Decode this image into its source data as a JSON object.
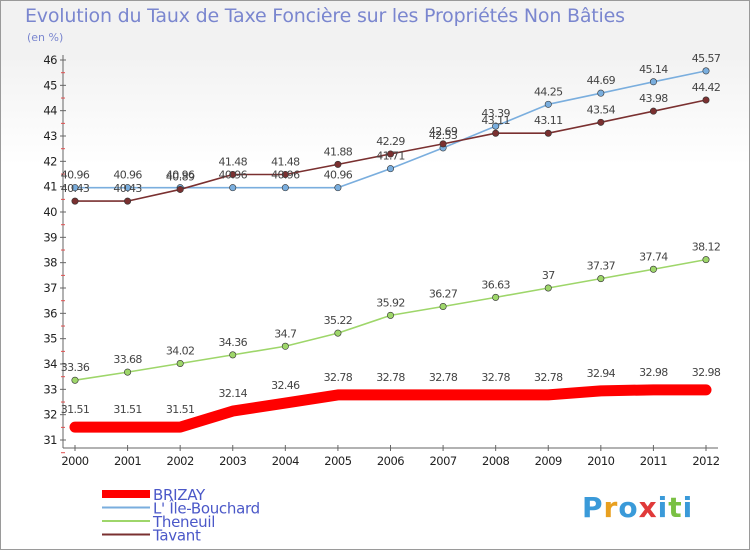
{
  "header": {
    "title": "Evolution du Taux de Taxe Foncière sur les Propriétés Non Bâties",
    "subtitle": "(en %)"
  },
  "brand": {
    "logo_text": "Proxiti"
  },
  "chart_data": {
    "type": "line",
    "title": "Evolution du Taux de Taxe Foncière sur les Propriétés Non Bâties",
    "ylabel": "(en %)",
    "xlabel": "",
    "ylim": [
      31,
      46
    ],
    "yticks": [
      31,
      32,
      33,
      34,
      35,
      36,
      37,
      38,
      39,
      40,
      41,
      42,
      43,
      44,
      45,
      46
    ],
    "x": [
      "2000",
      "2001",
      "2002",
      "2003",
      "2004",
      "2005",
      "2006",
      "2007",
      "2008",
      "2009",
      "2010",
      "2011",
      "2012"
    ],
    "grid": false,
    "legend_position": "bottom-left",
    "series": [
      {
        "name": "BRIZAY",
        "color": "#ff0000",
        "values": [
          31.51,
          31.51,
          31.51,
          32.14,
          32.46,
          32.78,
          32.78,
          32.78,
          32.78,
          32.78,
          32.94,
          32.98,
          32.98
        ],
        "labels": [
          "31.51",
          "31.51",
          "31.51",
          "32.14",
          "32.46",
          "32.78",
          "32.78",
          "32.78",
          "32.78",
          "32.78",
          "32.94",
          "32.98",
          "32.98"
        ]
      },
      {
        "name": "L' Île-Bouchard",
        "color": "#7aaede",
        "values": [
          40.96,
          40.96,
          40.96,
          40.96,
          40.96,
          40.96,
          41.71,
          42.53,
          43.39,
          44.25,
          44.69,
          45.14,
          45.57
        ],
        "labels": [
          "40.96",
          "40.96",
          "40.96",
          "40.96",
          "40.96",
          "40.96",
          "41.71",
          "42.53",
          "43.39",
          "44.25",
          "44.69",
          "45.14",
          "45.57"
        ]
      },
      {
        "name": "Theneuil",
        "color": "#9ed66a",
        "values": [
          33.36,
          33.68,
          34.02,
          34.36,
          34.7,
          35.22,
          35.92,
          36.27,
          36.63,
          37,
          37.37,
          37.74,
          38.12
        ],
        "labels": [
          "33.36",
          "33.68",
          "34.02",
          "34.36",
          "34.7",
          "35.22",
          "35.92",
          "36.27",
          "36.63",
          "37",
          "37.37",
          "37.74",
          "38.12"
        ]
      },
      {
        "name": "Tavant",
        "color": "#7a3030",
        "values": [
          40.43,
          40.43,
          40.89,
          41.48,
          41.48,
          41.88,
          42.29,
          42.69,
          43.11,
          43.11,
          43.54,
          43.98,
          44.42
        ],
        "labels": [
          "40.43",
          "40.43",
          "40.89",
          "41.48",
          "41.48",
          "41.88",
          "42.29",
          "42.69",
          "43.11",
          "43.11",
          "43.54",
          "43.98",
          "44.42"
        ]
      }
    ]
  }
}
